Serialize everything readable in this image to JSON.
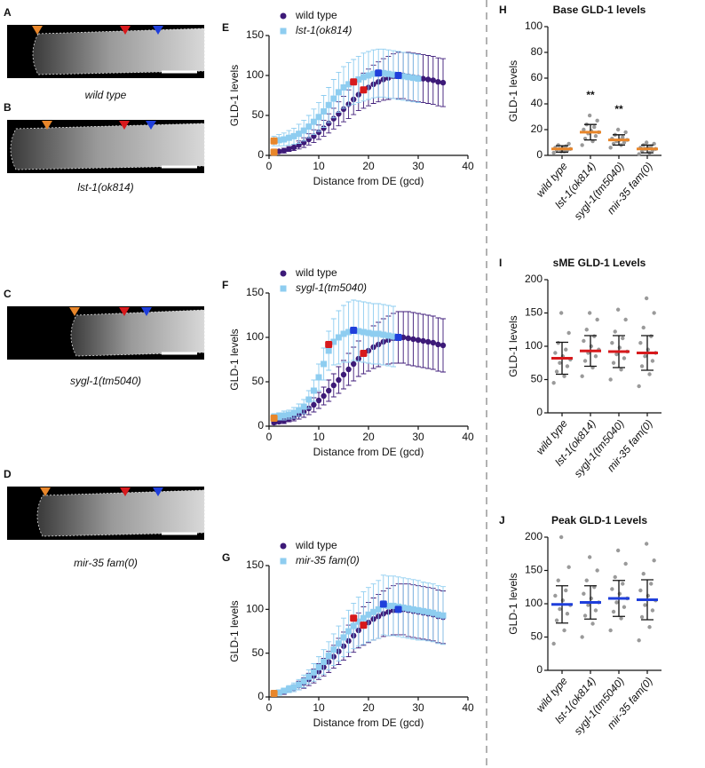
{
  "images": [
    {
      "label": "A",
      "caption": "wild type"
    },
    {
      "label": "B",
      "caption": "lst-1(ok814)"
    },
    {
      "label": "C",
      "caption": "sygl-1(tm5040)"
    },
    {
      "label": "D",
      "caption": "mir-35 fam(0)"
    }
  ],
  "chart_data": [
    {
      "type": "line",
      "label": "E",
      "xlabel": "Distance from DE (gcd)",
      "ylabel": "GLD-1 levels",
      "xlim": [
        0,
        40
      ],
      "xticks": [
        0,
        10,
        20,
        30,
        40
      ],
      "ylim": [
        0,
        150
      ],
      "yticks": [
        0,
        50,
        100,
        150
      ],
      "x": [
        1,
        2,
        3,
        4,
        5,
        6,
        7,
        8,
        9,
        10,
        11,
        12,
        13,
        14,
        15,
        16,
        17,
        18,
        19,
        20,
        21,
        22,
        23,
        24,
        25,
        26,
        27,
        28,
        29,
        30,
        31,
        32,
        33,
        34,
        35
      ],
      "series": [
        {
          "name": "wild type",
          "color": "#3d1a78",
          "marker": "circle",
          "values": [
            4,
            5,
            6,
            8,
            10,
            13,
            16,
            20,
            24,
            29,
            34,
            40,
            46,
            52,
            58,
            64,
            70,
            76,
            81,
            85,
            89,
            92,
            95,
            97,
            99,
            100,
            100,
            99,
            98,
            97,
            96,
            95,
            94,
            92,
            91
          ],
          "errors": [
            2,
            2,
            3,
            3,
            4,
            5,
            6,
            7,
            8,
            9,
            10,
            12,
            13,
            15,
            16,
            18,
            19,
            20,
            22,
            23,
            24,
            25,
            26,
            27,
            28,
            29,
            29,
            30,
            30,
            30,
            30,
            30,
            30,
            30,
            30
          ]
        },
        {
          "name": "lst-1(ok814)",
          "color": "#8ecdf0",
          "marker": "square",
          "values": [
            18,
            19,
            20,
            22,
            24,
            27,
            31,
            36,
            42,
            48,
            55,
            63,
            71,
            79,
            85,
            89,
            92,
            95,
            98,
            100,
            102,
            103,
            103,
            102,
            101,
            100,
            99,
            98,
            97,
            96,
            null,
            null,
            null,
            null,
            null
          ],
          "errors": [
            6,
            7,
            8,
            9,
            10,
            12,
            13,
            14,
            16,
            18,
            20,
            22,
            24,
            25,
            26,
            27,
            28,
            29,
            30,
            30,
            30,
            30,
            30,
            30,
            30,
            30,
            30,
            30,
            30,
            30,
            null,
            null,
            null,
            null,
            null
          ]
        }
      ],
      "highlights": [
        {
          "x": 1,
          "y": 4,
          "color": "#e8862a"
        },
        {
          "x": 1,
          "y": 18,
          "color": "#e8862a"
        },
        {
          "x": 17,
          "y": 92,
          "color": "#d7191c"
        },
        {
          "x": 19,
          "y": 82,
          "color": "#d7191c"
        },
        {
          "x": 22,
          "y": 103,
          "color": "#1f3fdb"
        },
        {
          "x": 26,
          "y": 100,
          "color": "#1f3fdb"
        }
      ]
    },
    {
      "type": "line",
      "label": "F",
      "xlabel": "Distance from DE (gcd)",
      "ylabel": "GLD-1 levels",
      "xlim": [
        0,
        40
      ],
      "xticks": [
        0,
        10,
        20,
        30,
        40
      ],
      "ylim": [
        0,
        150
      ],
      "yticks": [
        0,
        50,
        100,
        150
      ],
      "x": [
        1,
        2,
        3,
        4,
        5,
        6,
        7,
        8,
        9,
        10,
        11,
        12,
        13,
        14,
        15,
        16,
        17,
        18,
        19,
        20,
        21,
        22,
        23,
        24,
        25,
        26,
        27,
        28,
        29,
        30,
        31,
        32,
        33,
        34,
        35
      ],
      "series": [
        {
          "name": "wild type",
          "color": "#3d1a78",
          "marker": "circle",
          "values": [
            4,
            5,
            6,
            8,
            10,
            13,
            16,
            20,
            24,
            29,
            34,
            40,
            46,
            52,
            58,
            64,
            70,
            76,
            81,
            85,
            89,
            92,
            95,
            97,
            99,
            100,
            100,
            99,
            98,
            97,
            96,
            95,
            94,
            92,
            91
          ],
          "errors": [
            2,
            2,
            3,
            3,
            4,
            5,
            6,
            7,
            8,
            9,
            10,
            12,
            13,
            15,
            16,
            18,
            19,
            20,
            22,
            23,
            24,
            25,
            26,
            27,
            28,
            29,
            29,
            30,
            30,
            30,
            30,
            30,
            30,
            30,
            30
          ]
        },
        {
          "name": "sygl-1(tm5040)",
          "color": "#8ecdf0",
          "marker": "square",
          "values": [
            10,
            11,
            12,
            13,
            15,
            18,
            22,
            30,
            40,
            55,
            70,
            85,
            95,
            100,
            104,
            106,
            108,
            107,
            106,
            105,
            104,
            104,
            103,
            102,
            101,
            null,
            null,
            null,
            null,
            null,
            null,
            null,
            null,
            null,
            null
          ],
          "errors": [
            4,
            4,
            5,
            5,
            6,
            7,
            8,
            10,
            12,
            15,
            18,
            22,
            26,
            30,
            32,
            34,
            34,
            34,
            34,
            34,
            34,
            34,
            34,
            34,
            34,
            null,
            null,
            null,
            null,
            null,
            null,
            null,
            null,
            null,
            null
          ]
        }
      ],
      "highlights": [
        {
          "x": 1,
          "y": 9,
          "color": "#e8862a"
        },
        {
          "x": 12,
          "y": 92,
          "color": "#d7191c"
        },
        {
          "x": 19,
          "y": 82,
          "color": "#d7191c"
        },
        {
          "x": 17,
          "y": 108,
          "color": "#1f3fdb"
        },
        {
          "x": 26,
          "y": 100,
          "color": "#1f3fdb"
        }
      ]
    },
    {
      "type": "line",
      "label": "G",
      "xlabel": "Distance from DE (gcd)",
      "ylabel": "GLD-1 levels",
      "xlim": [
        0,
        40
      ],
      "xticks": [
        0,
        10,
        20,
        30,
        40
      ],
      "ylim": [
        0,
        150
      ],
      "yticks": [
        0,
        50,
        100,
        150
      ],
      "x": [
        1,
        2,
        3,
        4,
        5,
        6,
        7,
        8,
        9,
        10,
        11,
        12,
        13,
        14,
        15,
        16,
        17,
        18,
        19,
        20,
        21,
        22,
        23,
        24,
        25,
        26,
        27,
        28,
        29,
        30,
        31,
        32,
        33,
        34,
        35
      ],
      "series": [
        {
          "name": "wild type",
          "color": "#3d1a78",
          "marker": "circle",
          "values": [
            4,
            5,
            6,
            8,
            10,
            13,
            16,
            20,
            24,
            29,
            34,
            40,
            46,
            52,
            58,
            64,
            70,
            76,
            81,
            85,
            89,
            92,
            95,
            97,
            99,
            100,
            100,
            99,
            98,
            97,
            96,
            95,
            94,
            92,
            91
          ],
          "errors": [
            2,
            2,
            3,
            3,
            4,
            5,
            6,
            7,
            8,
            9,
            10,
            12,
            13,
            15,
            16,
            18,
            19,
            20,
            22,
            23,
            24,
            25,
            26,
            27,
            28,
            29,
            29,
            30,
            30,
            30,
            30,
            30,
            30,
            30,
            30
          ]
        },
        {
          "name": "mir-35 fam(0)",
          "color": "#8ecdf0",
          "marker": "square",
          "values": [
            4,
            5,
            7,
            9,
            11,
            14,
            18,
            23,
            28,
            34,
            40,
            47,
            54,
            61,
            68,
            75,
            81,
            86,
            90,
            94,
            97,
            100,
            105,
            104,
            104,
            103,
            102,
            101,
            100,
            99,
            98,
            97,
            96,
            94,
            93
          ],
          "errors": [
            2,
            3,
            3,
            4,
            5,
            6,
            7,
            8,
            10,
            12,
            14,
            16,
            18,
            20,
            22,
            24,
            26,
            28,
            30,
            31,
            32,
            33,
            34,
            34,
            34,
            34,
            34,
            34,
            34,
            34,
            33,
            33,
            33,
            33,
            33
          ]
        }
      ],
      "highlights": [
        {
          "x": 1,
          "y": 4,
          "color": "#e8862a"
        },
        {
          "x": 17,
          "y": 90,
          "color": "#d7191c"
        },
        {
          "x": 19,
          "y": 82,
          "color": "#d7191c"
        },
        {
          "x": 23,
          "y": 106,
          "color": "#1f3fdb"
        },
        {
          "x": 26,
          "y": 100,
          "color": "#1f3fdb"
        }
      ]
    },
    {
      "type": "dot",
      "label": "H",
      "title": "Base GLD-1 levels",
      "ylabel": "GLD-1 levels",
      "categories": [
        "wild type",
        "lst-1(ok814)",
        "sygl-1(tm5040)",
        "mir-35 fam(0)"
      ],
      "ylim": [
        0,
        100
      ],
      "yticks": [
        0,
        20,
        40,
        60,
        80,
        100
      ],
      "point_color": "#9a9a9a",
      "mean_color": "#e8862a",
      "points": [
        [
          2,
          3,
          4,
          4,
          5,
          5,
          6,
          6,
          7,
          8,
          9,
          3
        ],
        [
          8,
          11,
          13,
          15,
          17,
          18,
          19,
          20,
          22,
          24,
          27,
          31
        ],
        [
          6,
          8,
          9,
          10,
          11,
          12,
          12,
          13,
          14,
          16,
          18,
          20
        ],
        [
          1,
          2,
          3,
          4,
          5,
          5,
          6,
          6,
          7,
          8,
          9,
          10
        ]
      ],
      "mean": [
        5,
        18,
        12,
        5
      ],
      "sd": [
        2.5,
        6,
        4,
        3
      ],
      "significance": [
        null,
        "**",
        "**",
        null
      ],
      "significance_color": "#d7191c"
    },
    {
      "type": "dot",
      "label": "I",
      "title": "sME GLD-1 Levels",
      "ylabel": "GLD-1 levels",
      "categories": [
        "wild type",
        "lst-1(ok814)",
        "sygl-1(tm5040)",
        "mir-35 fam(0)"
      ],
      "ylim": [
        0,
        200
      ],
      "yticks": [
        0,
        50,
        100,
        150,
        200
      ],
      "point_color": "#9a9a9a",
      "mean_color": "#d7191c",
      "points": [
        [
          45,
          55,
          62,
          70,
          75,
          80,
          85,
          90,
          95,
          105,
          120,
          150
        ],
        [
          55,
          68,
          78,
          85,
          90,
          95,
          100,
          108,
          115,
          125,
          140,
          150
        ],
        [
          50,
          65,
          75,
          82,
          88,
          92,
          98,
          105,
          112,
          122,
          140,
          155
        ],
        [
          40,
          58,
          70,
          78,
          85,
          90,
          95,
          105,
          115,
          128,
          150,
          172
        ]
      ],
      "mean": [
        82,
        93,
        92,
        90
      ],
      "sd": [
        24,
        23,
        24,
        26
      ]
    },
    {
      "type": "dot",
      "label": "J",
      "title": "Peak GLD-1 Levels",
      "ylabel": "GLD-1 levels",
      "categories": [
        "wild type",
        "lst-1(ok814)",
        "sygl-1(tm5040)",
        "mir-35 fam(0)"
      ],
      "ylim": [
        0,
        200
      ],
      "yticks": [
        0,
        50,
        100,
        150,
        200
      ],
      "point_color": "#9a9a9a",
      "mean_color": "#1f3fdb",
      "points": [
        [
          40,
          60,
          75,
          85,
          92,
          98,
          105,
          112,
          120,
          135,
          155,
          200
        ],
        [
          50,
          70,
          82,
          90,
          98,
          102,
          108,
          115,
          125,
          135,
          150,
          170
        ],
        [
          60,
          78,
          88,
          95,
          102,
          108,
          115,
          122,
          130,
          140,
          160,
          180
        ],
        [
          45,
          65,
          80,
          90,
          98,
          105,
          112,
          120,
          130,
          145,
          165,
          190
        ]
      ],
      "mean": [
        99,
        102,
        108,
        106
      ],
      "sd": [
        28,
        25,
        27,
        30
      ]
    }
  ]
}
